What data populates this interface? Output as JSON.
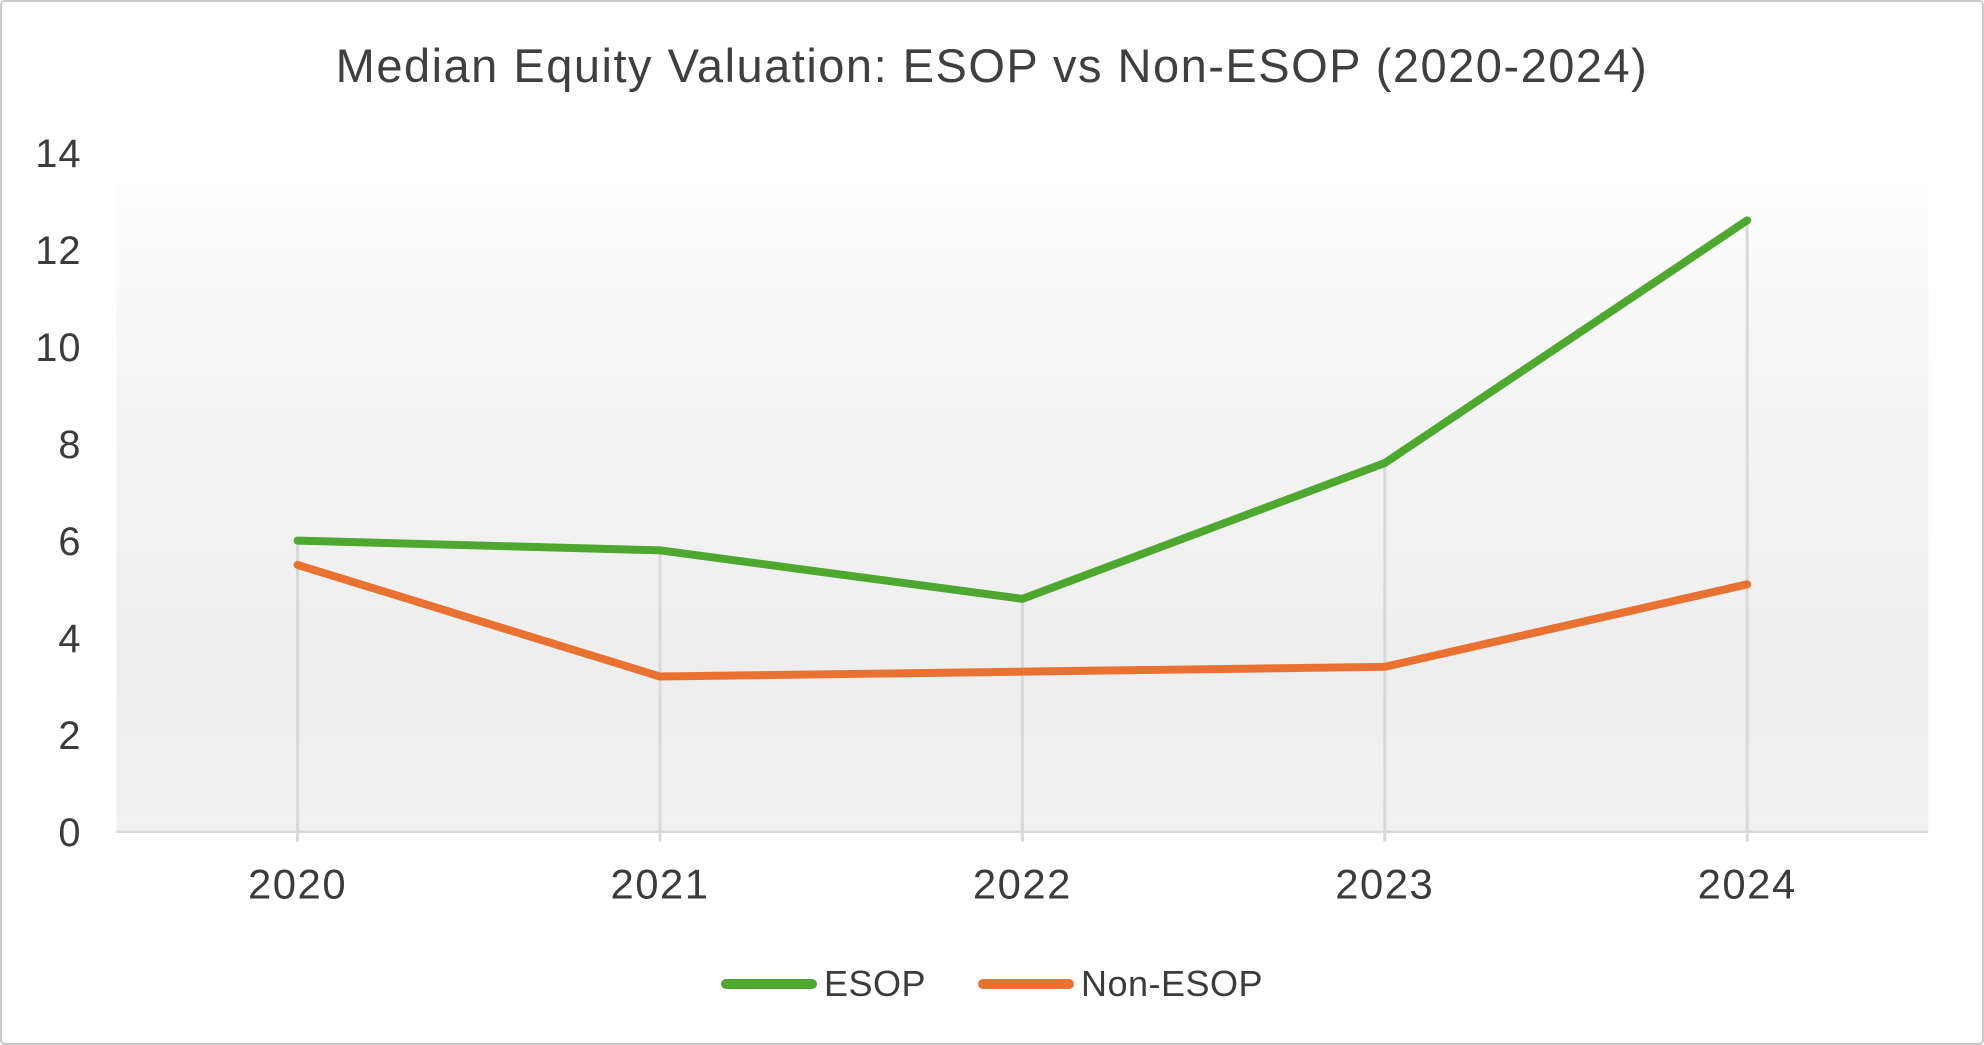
{
  "chart_data": {
    "type": "line",
    "title": "Median Equity Valuation: ESOP vs Non-ESOP (2020-2024)",
    "categories": [
      "2020",
      "2021",
      "2022",
      "2023",
      "2024"
    ],
    "series": [
      {
        "name": "ESOP",
        "color": "#4ea72e",
        "values": [
          6.0,
          5.8,
          4.8,
          7.6,
          12.6
        ]
      },
      {
        "name": "Non-ESOP",
        "color": "#e97132",
        "values": [
          5.5,
          3.2,
          3.3,
          3.4,
          5.1
        ]
      }
    ],
    "xlabel": "",
    "ylabel": "",
    "ylim": [
      0,
      14
    ],
    "yticks": [
      0,
      2,
      4,
      6,
      8,
      10,
      12,
      14
    ],
    "grid": "vertical drop lines from top series to baseline, no horizontal gridlines",
    "legend_position": "bottom"
  },
  "styles": {
    "title_color": "#3f3f3f",
    "axis_label_color": "#3b3b3b",
    "axis_line_color": "#d9d9d9",
    "drop_line_color": "#d9d9d9",
    "frame_border_color": "#c9c9c9"
  }
}
